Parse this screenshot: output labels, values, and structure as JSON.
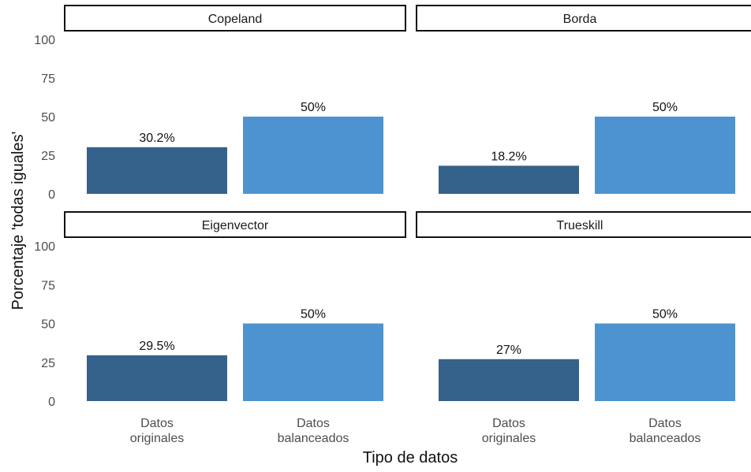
{
  "chart_data": {
    "type": "bar",
    "title": "",
    "xlabel": "Tipo de datos",
    "ylabel": "Porcentaje 'todas iguales'",
    "ylim": [
      0,
      100
    ],
    "yticks": [
      0,
      25,
      50,
      75,
      100
    ],
    "grid": false,
    "legend": "none",
    "categories": [
      "Datos originales",
      "Datos balanceados"
    ],
    "category_lines": [
      [
        "Datos",
        "originales"
      ],
      [
        "Datos",
        "balanceados"
      ]
    ],
    "colors": [
      "#35628a",
      "#4d93d0"
    ],
    "facets": [
      {
        "name": "Copeland",
        "values": [
          30.2,
          50
        ],
        "labels": [
          "30.2%",
          "50%"
        ]
      },
      {
        "name": "Borda",
        "values": [
          18.2,
          50
        ],
        "labels": [
          "18.2%",
          "50%"
        ]
      },
      {
        "name": "Eigenvector",
        "values": [
          29.5,
          50
        ],
        "labels": [
          "29.5%",
          "50%"
        ]
      },
      {
        "name": "Trueskill",
        "values": [
          27,
          50
        ],
        "labels": [
          "27%",
          "50%"
        ]
      }
    ]
  }
}
